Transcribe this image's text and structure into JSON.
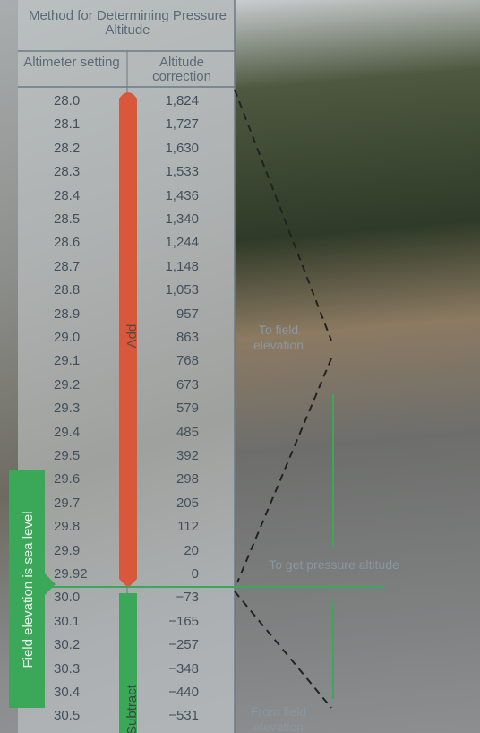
{
  "title": "Method for Determining Pressure Altitude",
  "table": {
    "header": [
      "Altimeter setting",
      "Altitude correction"
    ],
    "rows": [
      [
        "28.0",
        "1,824"
      ],
      [
        "28.1",
        "1,727"
      ],
      [
        "28.2",
        "1,630"
      ],
      [
        "28.3",
        "1,533"
      ],
      [
        "28.4",
        "1,436"
      ],
      [
        "28.5",
        "1,340"
      ],
      [
        "28.6",
        "1,244"
      ],
      [
        "28.7",
        "1,148"
      ],
      [
        "28.8",
        "1,053"
      ],
      [
        "28.9",
        "957"
      ],
      [
        "29.0",
        "863"
      ],
      [
        "29.1",
        "768"
      ],
      [
        "29.2",
        "673"
      ],
      [
        "29.3",
        "579"
      ],
      [
        "29.4",
        "485"
      ],
      [
        "29.5",
        "392"
      ],
      [
        "29.6",
        "298"
      ],
      [
        "29.7",
        "205"
      ],
      [
        "29.8",
        "112"
      ],
      [
        "29.9",
        "20"
      ],
      [
        "29.92",
        "0"
      ],
      [
        "30.0",
        "−73"
      ],
      [
        "30.1",
        "−165"
      ],
      [
        "30.2",
        "−257"
      ],
      [
        "30.3",
        "−348"
      ],
      [
        "30.4",
        "−440"
      ],
      [
        "30.5",
        "−531"
      ]
    ]
  },
  "labels": {
    "add": "Add",
    "subtract": "Subtract",
    "sea_level": "Field elevation is sea level",
    "to_field": "To field elevation",
    "to_get": "To get pressure altitude",
    "from_field": "From field elevation"
  }
}
